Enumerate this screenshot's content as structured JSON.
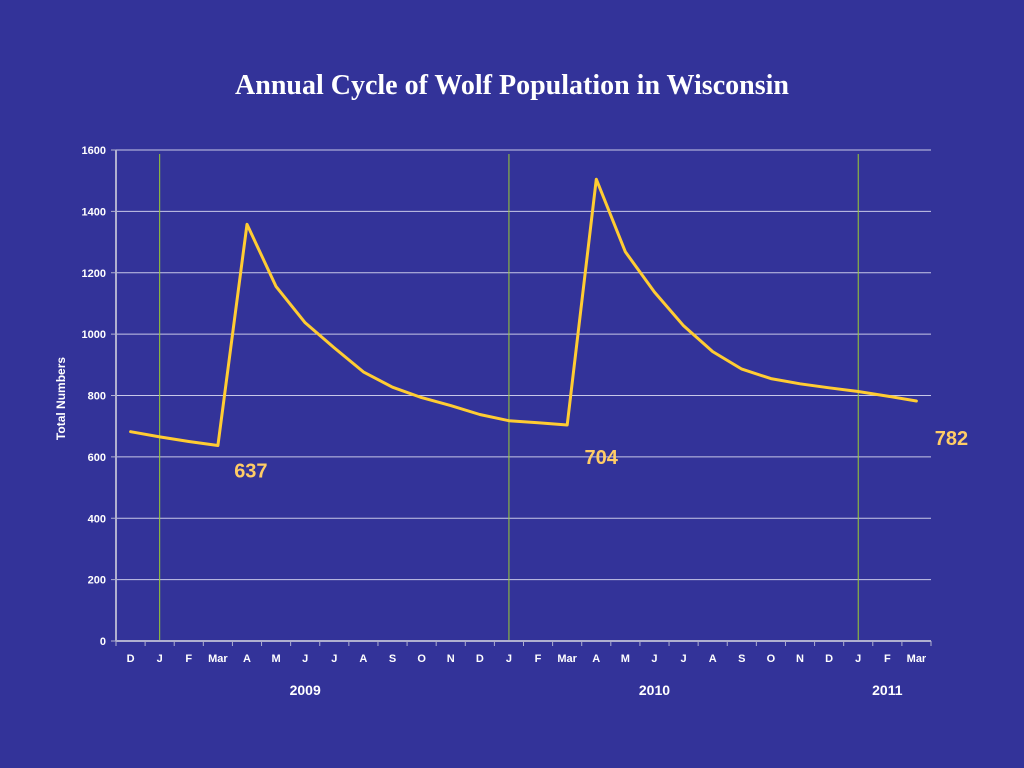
{
  "chart_data": {
    "type": "line",
    "title": "Annual Cycle of Wolf Population in Wisconsin",
    "ylabel": "Total Numbers",
    "xlabel": "",
    "ylim": [
      0,
      1600
    ],
    "yticks": [
      0,
      200,
      400,
      600,
      800,
      1000,
      1200,
      1400,
      1600
    ],
    "grid": true,
    "categories": [
      "D",
      "J",
      "F",
      "Mar",
      "A",
      "M",
      "J",
      "J",
      "A",
      "S",
      "O",
      "N",
      "D",
      "J",
      "F",
      "Mar",
      "A",
      "M",
      "J",
      "J",
      "A",
      "S",
      "O",
      "N",
      "D",
      "J",
      "F",
      "Mar"
    ],
    "years": [
      {
        "label": "2009",
        "center_index": 6
      },
      {
        "label": "2010",
        "center_index": 18
      },
      {
        "label": "2011",
        "center_index": 26
      }
    ],
    "year_boundaries": [
      1,
      13,
      25
    ],
    "series": [
      {
        "name": "",
        "values": [
          682,
          665,
          650,
          637,
          1358,
          1155,
          1037,
          955,
          877,
          827,
          793,
          767,
          738,
          718,
          711,
          704,
          1505,
          1268,
          1137,
          1027,
          943,
          886,
          855,
          838,
          825,
          813,
          798,
          782
        ]
      }
    ],
    "annotations": [
      {
        "text": "637",
        "index": 3
      },
      {
        "text": "704",
        "index": 15
      },
      {
        "text": "782",
        "index": 27
      }
    ],
    "colors": {
      "background": "#333399",
      "line": "#FFCC33",
      "grid": "#C8C8E8",
      "year_line": "#99CC33",
      "axis": "#B0B0D0",
      "annotation": "#FFCC66"
    }
  }
}
